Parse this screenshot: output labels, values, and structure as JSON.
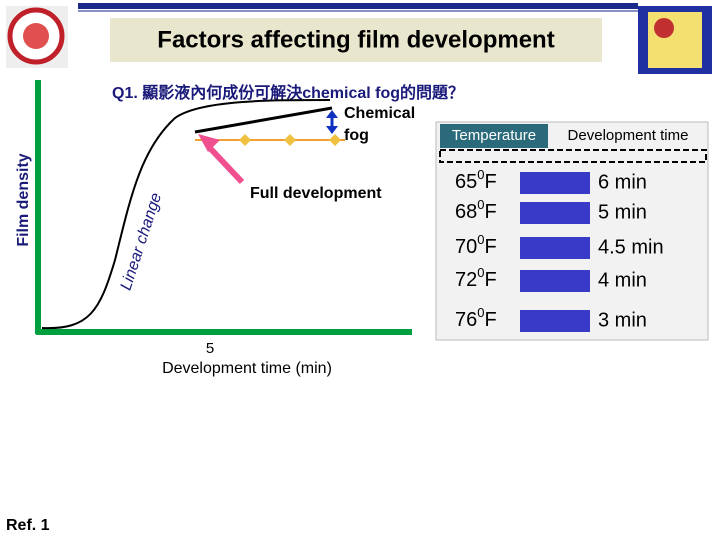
{
  "header": {
    "title": "Factors affecting film development"
  },
  "question": "Q1. 顯影液內何成份可解決chemical fog的問題？",
  "diagram": {
    "y_label": "Film density",
    "x_tick": "5",
    "x_label": "Development time (min)",
    "fog_label": [
      "Chemical",
      "fog"
    ],
    "full_label": "Full development",
    "linear_label": "Linear change"
  },
  "table": {
    "headers": [
      "Temperature",
      "Development time"
    ],
    "rows": [
      [
        {
          "degrees": "65",
          "sup": "0",
          "unit": "F"
        },
        "6 min"
      ],
      [
        {
          "degrees": "68",
          "sup": "0",
          "unit": "F"
        },
        "5 min"
      ],
      [
        {
          "degrees": "70",
          "sup": "0",
          "unit": "F"
        },
        "4.5 min"
      ],
      [
        {
          "degrees": "72",
          "sup": "0",
          "unit": "F"
        },
        "4 min"
      ],
      [
        {
          "degrees": "76",
          "sup": "0",
          "unit": "F"
        },
        "3 min"
      ]
    ]
  },
  "footer": "Ref. 1"
}
